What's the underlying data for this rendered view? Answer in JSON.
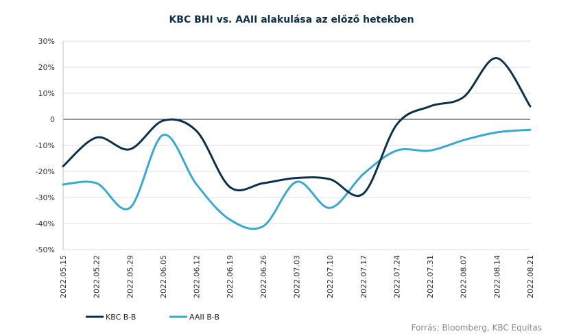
{
  "chart_data": {
    "type": "line",
    "title": "KBC BHI vs. AAII alakulása az előző hetekben",
    "xlabel": "",
    "ylabel": "",
    "x": [
      "2022.05.15",
      "2022.05.22",
      "2022.05.29",
      "2022.06.05",
      "2022.06.12",
      "2022.06.19",
      "2022.06.26",
      "2022.07.03",
      "2022.07.10",
      "2022.07.17",
      "2022.07.24",
      "2022.07.31",
      "2022.08.07",
      "2022.08.14",
      "2022.08.21"
    ],
    "ylim": [
      -50,
      30
    ],
    "yticks": [
      30,
      20,
      10,
      0,
      -10,
      -20,
      -30,
      -40,
      -50
    ],
    "ytick_labels": [
      "30%",
      "20%",
      "10%",
      "0",
      "-10%",
      "-20%",
      "-30%",
      "-40%",
      "-50%"
    ],
    "grid": true,
    "legend_position": "bottom-left",
    "series": [
      {
        "name": "KBC B-B",
        "color": "#0d3049",
        "values": [
          -18,
          -7,
          -11.5,
          -0.5,
          -4.5,
          -26,
          -24.5,
          -22.5,
          -23,
          -28.5,
          -2,
          5,
          8.5,
          23.5,
          5
        ]
      },
      {
        "name": "AAII B-B",
        "color": "#3aa9d0",
        "values": [
          -25,
          -24.5,
          -34,
          -6,
          -25,
          -38.5,
          -41,
          -24,
          -34,
          -21,
          -12,
          -12,
          -8,
          -5,
          -4
        ]
      }
    ]
  },
  "source": "Forrás: Bloomberg,  KBC Equitas"
}
